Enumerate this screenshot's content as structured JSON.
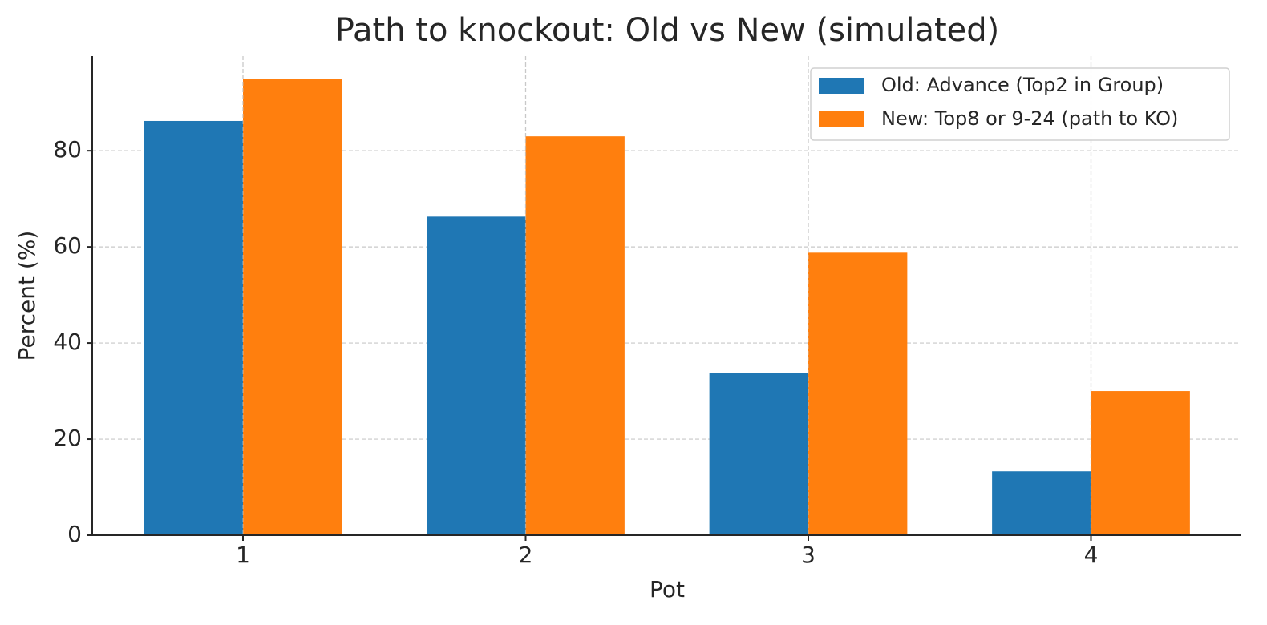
{
  "chart_data": {
    "type": "bar",
    "title": "Path to knockout: Old vs New (simulated)",
    "x_label": "Pot",
    "y_label": "Percent (%)",
    "categories": [
      "1",
      "2",
      "3",
      "4"
    ],
    "series": [
      {
        "name": "Old: Advance (Top2 in Group)",
        "color": "#1f77b4",
        "values": [
          86.2,
          66.3,
          33.8,
          13.3
        ]
      },
      {
        "name": "New: Top8 or 9-24 (path to KO)",
        "color": "#ff7f0e",
        "values": [
          95,
          83,
          58.8,
          30
        ]
      }
    ],
    "ylim": [
      0,
      99.7
    ],
    "yticks": [
      0,
      20,
      40,
      60,
      80
    ],
    "grid": true,
    "legend": "upper right"
  }
}
